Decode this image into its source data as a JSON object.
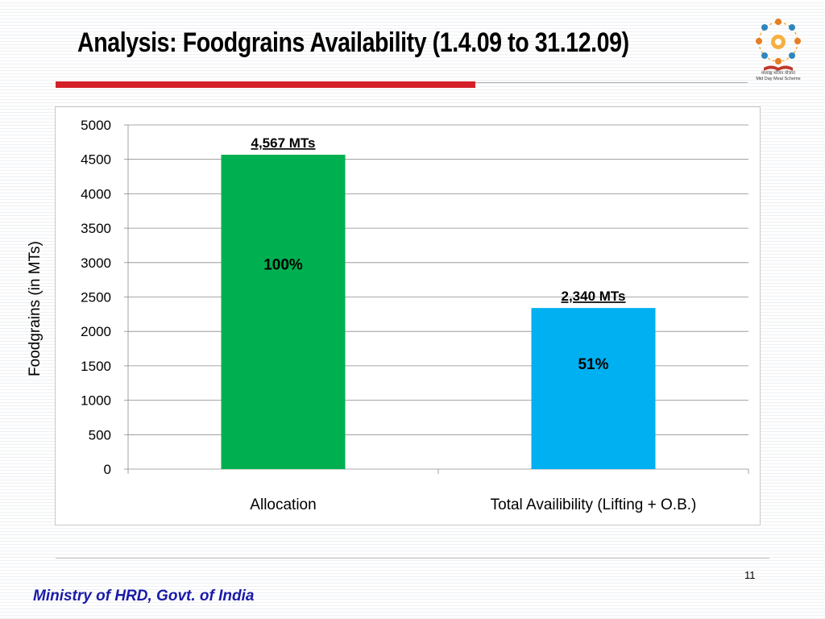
{
  "slide": {
    "title": "Analysis: Foodgrains Availability (1.4.09 to 31.12.09)",
    "page_number": "11",
    "footer": "Ministry of HRD, Govt. of India",
    "accent_color": "#d42027",
    "footer_color": "#1a1aa8"
  },
  "logo": {
    "icon": "mid-day-meal-scheme-logo",
    "caption_hindi": "मध्याह्न भोजन योजना",
    "caption_english": "Mid Day Meal Scheme"
  },
  "chart_data": {
    "type": "bar",
    "categories": [
      "Allocation",
      "Total Availibility (Lifting + O.B.)"
    ],
    "values": [
      4567,
      2340
    ],
    "value_labels": [
      "4,567 MTs",
      "2,340 MTs"
    ],
    "percent_labels": [
      "100%",
      "51%"
    ],
    "colors": [
      "#00b050",
      "#00b0f0"
    ],
    "ylabel": "Foodgrains (in MTs)",
    "ylim": [
      0,
      5000
    ],
    "yticks": [
      0,
      500,
      1000,
      1500,
      2000,
      2500,
      3000,
      3500,
      4000,
      4500,
      5000
    ],
    "grid": true,
    "legend": "none"
  }
}
